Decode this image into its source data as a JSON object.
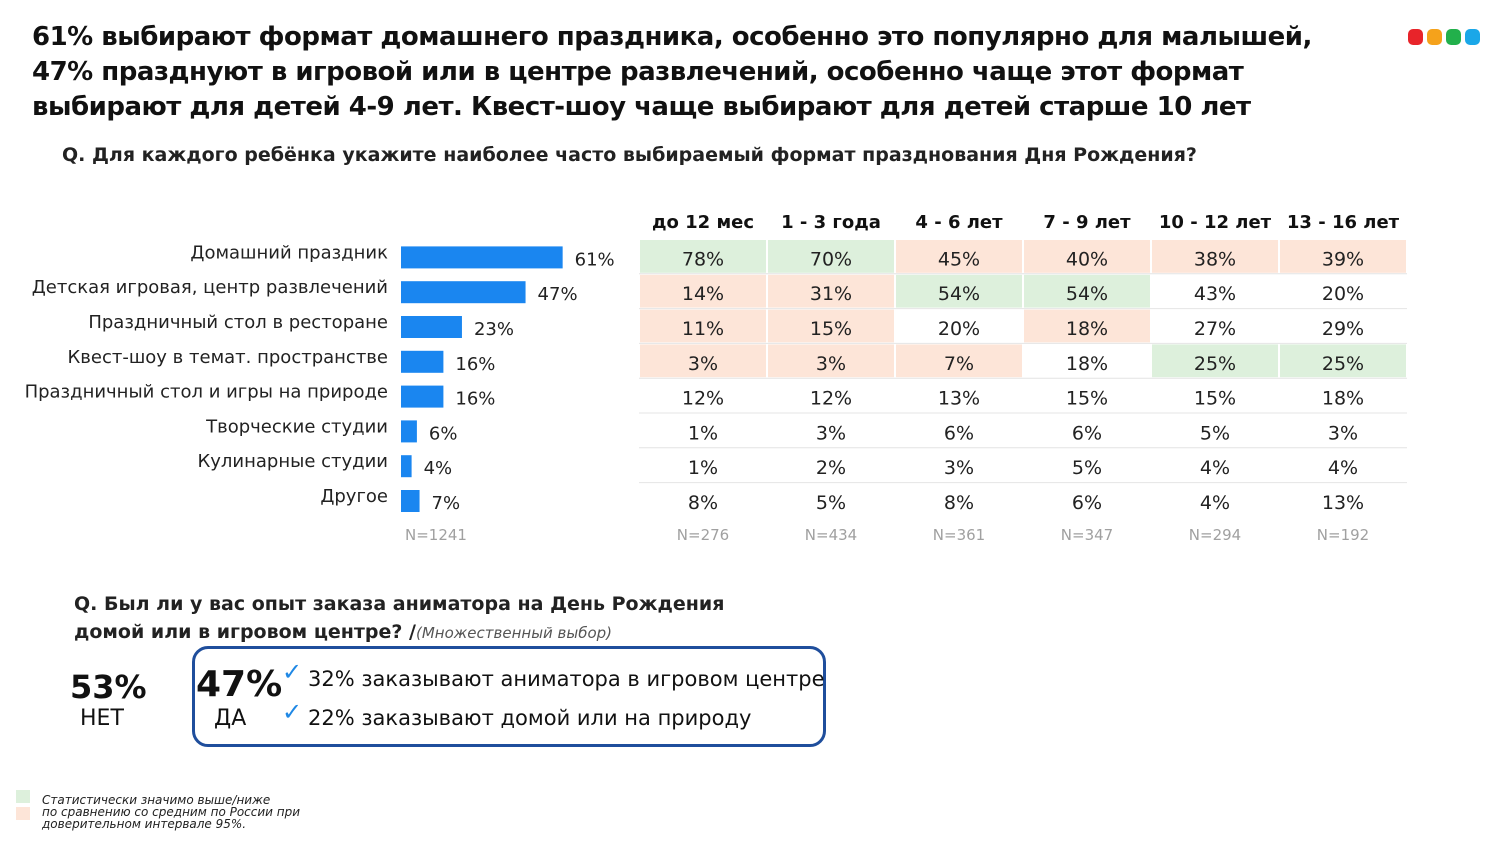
{
  "headline": {
    "line1": "61% выбирают формат домашнего праздника, особенно это популярно для малышей,",
    "line2": "47% празднуют в игровой или в центре развлечений, особенно чаще этот формат",
    "line3": "выбирают для детей 4-9 лет. Квест-шоу чаще выбирают для детей старше 10 лет"
  },
  "logo": {
    "colors": [
      "#e8242a",
      "#f5a21b",
      "#22b04b",
      "#1aa7e8"
    ]
  },
  "question1": "Q. Для каждого ребёнка укажите наиболее часто выбираемый формат празднования Дня Рождения?",
  "chart_data": {
    "type": "bar",
    "orientation": "horizontal",
    "categories": [
      "Домашний праздник",
      "Детская игровая, центр развлечений",
      "Праздничный стол в ресторане",
      "Квест-шоу в темат. пространстве",
      "Праздничный стол и игры на природе",
      "Творческие студии",
      "Кулинарные студии",
      "Другое"
    ],
    "values": [
      61,
      47,
      23,
      16,
      16,
      6,
      4,
      7
    ],
    "value_labels": [
      "61%",
      "47%",
      "23%",
      "16%",
      "16%",
      "6%",
      "4%",
      "7%"
    ],
    "total_base": "N=1241",
    "bar_color": "#1a86f0",
    "table": {
      "columns": [
        "до 12 мес",
        "1 - 3 года",
        "4 - 6 лет",
        "7 - 9 лет",
        "10 - 12 лет",
        "13 - 16 лет"
      ],
      "rows": [
        [
          "78%",
          "70%",
          "45%",
          "40%",
          "38%",
          "39%"
        ],
        [
          "14%",
          "31%",
          "54%",
          "54%",
          "43%",
          "20%"
        ],
        [
          "11%",
          "15%",
          "20%",
          "18%",
          "27%",
          "29%"
        ],
        [
          "3%",
          "3%",
          "7%",
          "18%",
          "25%",
          "25%"
        ],
        [
          "12%",
          "12%",
          "13%",
          "15%",
          "15%",
          "18%"
        ],
        [
          "1%",
          "3%",
          "6%",
          "6%",
          "5%",
          "3%"
        ],
        [
          "1%",
          "2%",
          "3%",
          "5%",
          "4%",
          "4%"
        ],
        [
          "8%",
          "5%",
          "8%",
          "6%",
          "4%",
          "13%"
        ]
      ],
      "significance": [
        [
          "high",
          "high",
          "low",
          "low",
          "low",
          "low"
        ],
        [
          "low",
          "low",
          "high",
          "high",
          "",
          ""
        ],
        [
          "low",
          "low",
          "",
          "low",
          "",
          ""
        ],
        [
          "low",
          "low",
          "low",
          "",
          "high",
          "high"
        ],
        [
          "",
          "",
          "",
          "",
          "",
          ""
        ],
        [
          "",
          "",
          "",
          "",
          "",
          ""
        ],
        [
          "",
          "",
          "",
          "",
          "",
          ""
        ],
        [
          "",
          "",
          "",
          "",
          "",
          ""
        ]
      ],
      "bases": [
        "N=276",
        "N=434",
        "N=361",
        "N=347",
        "N=294",
        "N=192"
      ],
      "colors": {
        "high": "#ddf0dc",
        "low": "#fde5d8"
      }
    }
  },
  "question2": {
    "line1": "Q. Был ли у вас опыт заказа аниматора на День Рождения",
    "line2": "домой или в игровом центре? /",
    "note": "(Множественный выбор)"
  },
  "animator": {
    "no_pct": "53%",
    "no_label": "НЕТ",
    "yes_pct": "47%",
    "yes_label": "ДА",
    "check_icon": "✓",
    "yes_items": [
      "32% заказывают аниматора в игровом центре",
      "22% заказывают домой или на природу"
    ]
  },
  "legend": {
    "line1": "Статистически значимо выше/ниже",
    "line2": "по сравнению со средним по России  при",
    "line3": "доверительном интервале 95%."
  }
}
